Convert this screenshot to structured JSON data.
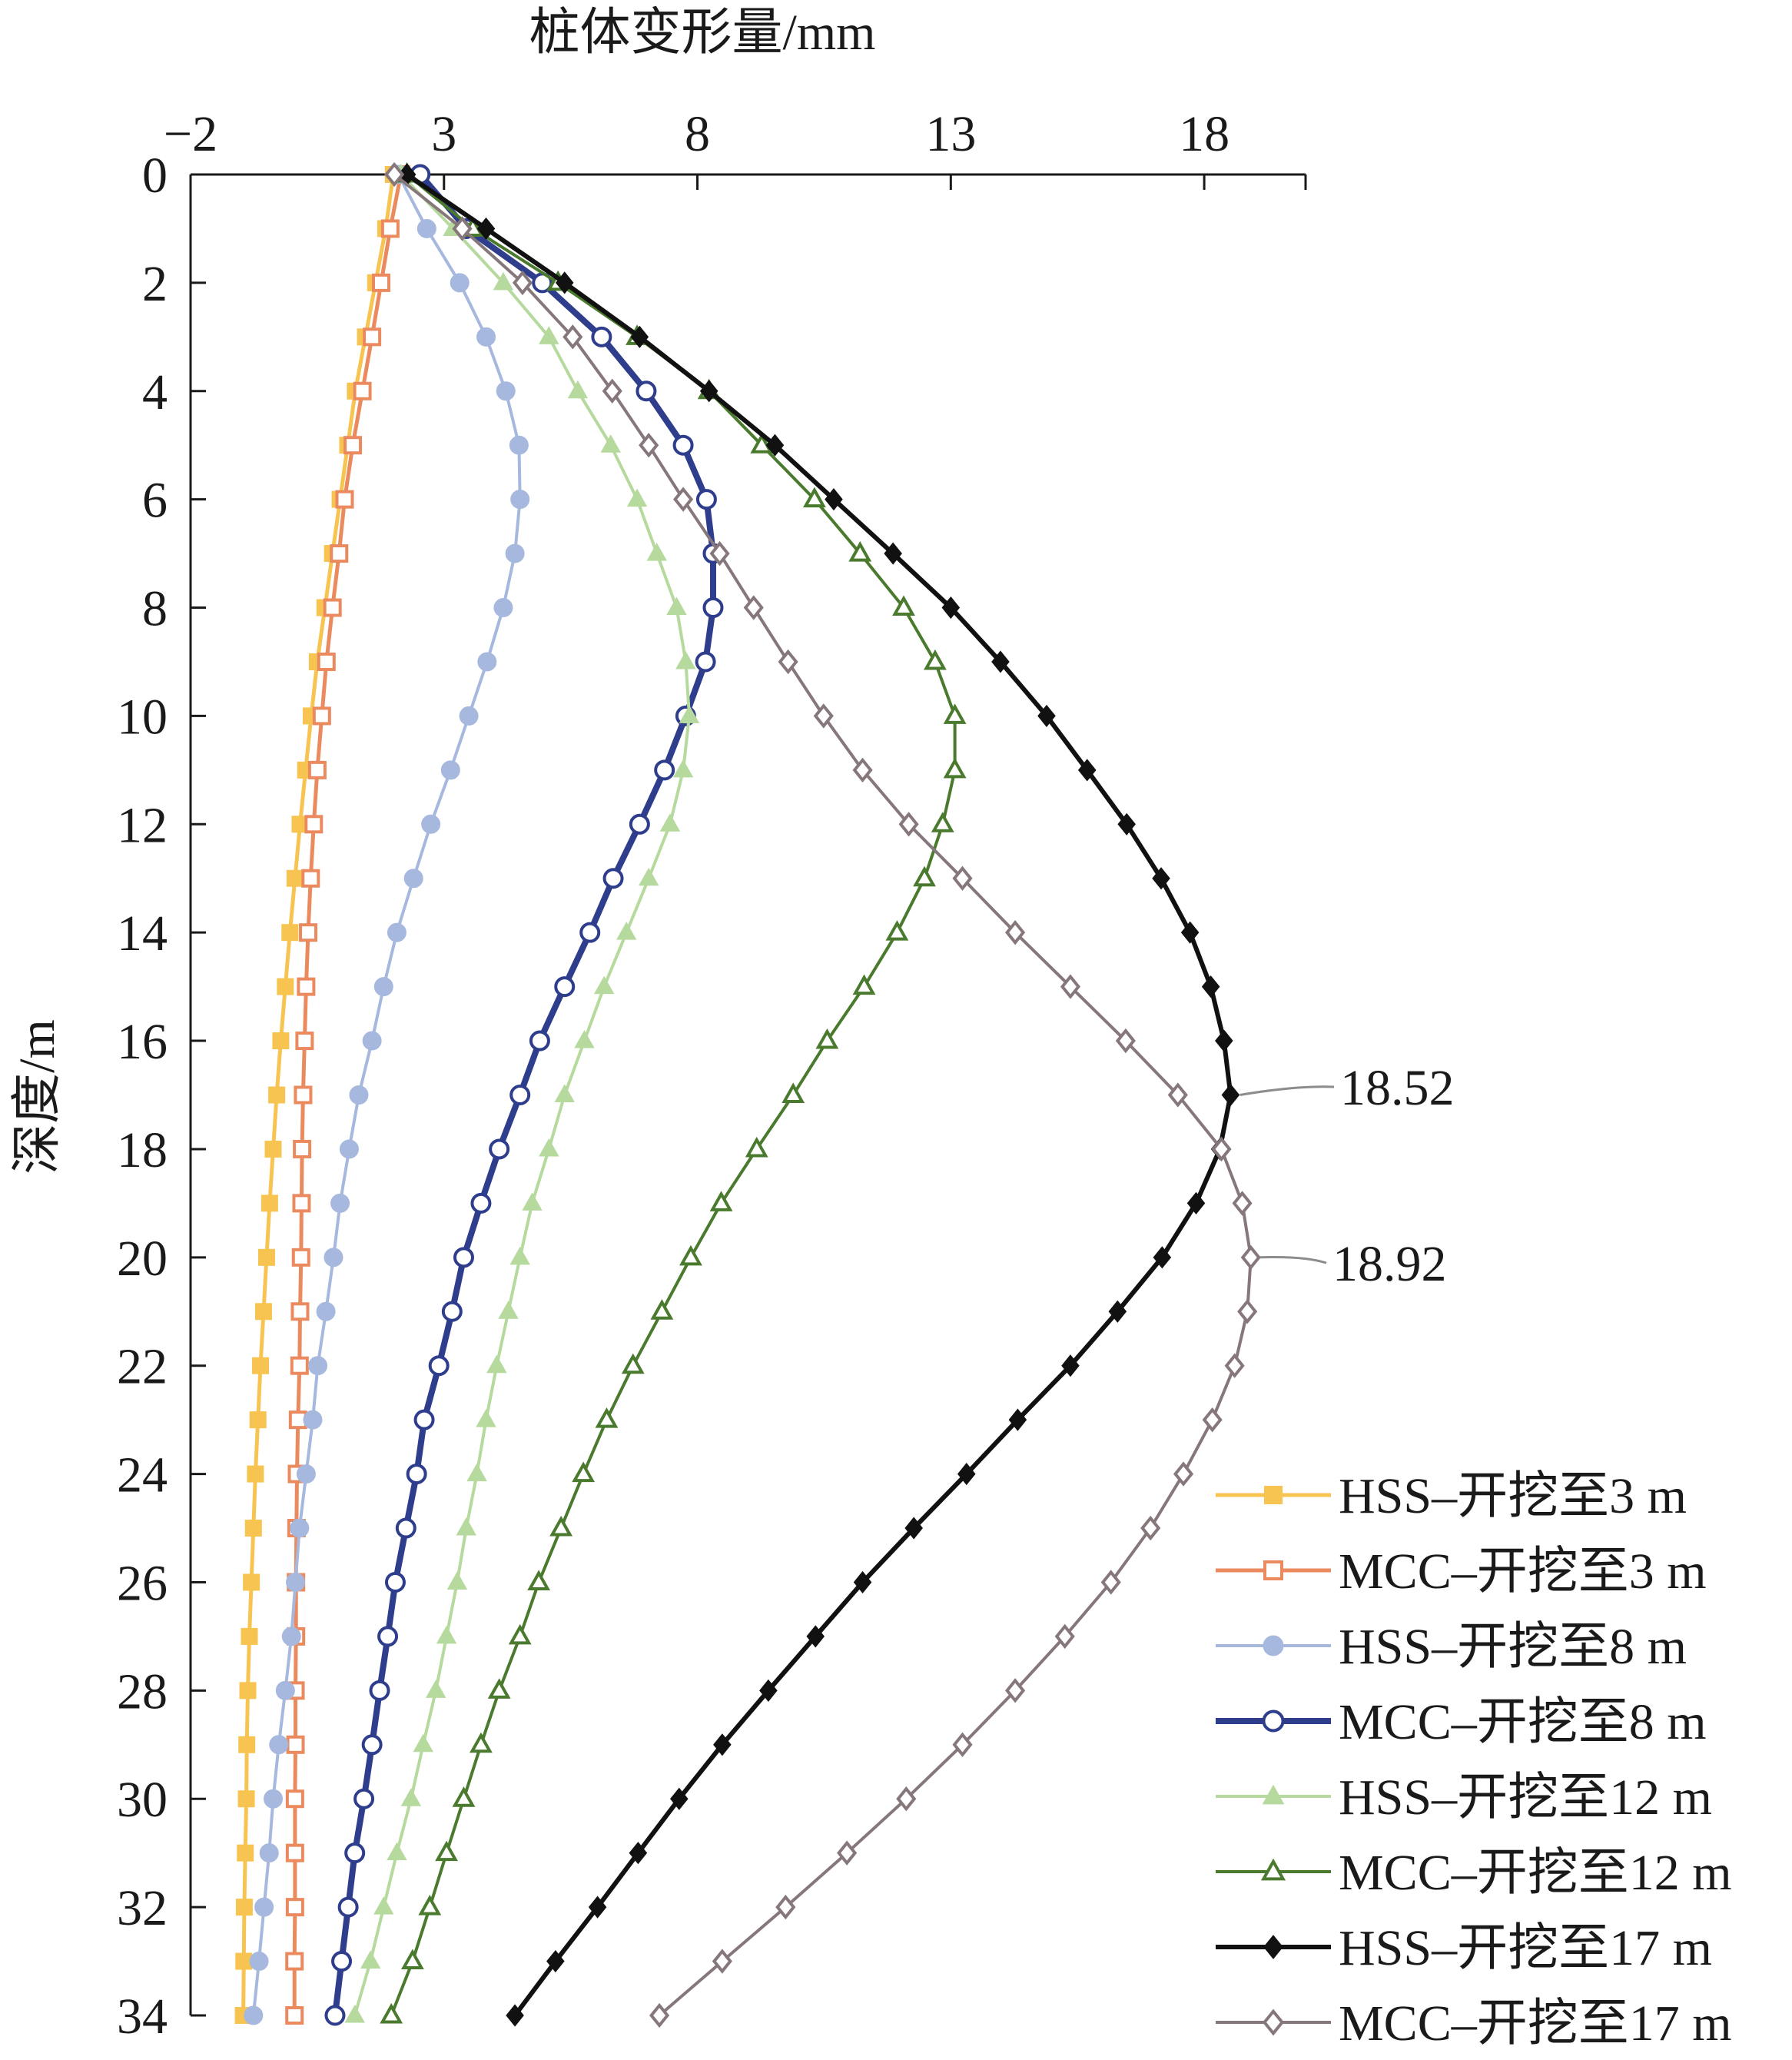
{
  "chart_data": {
    "type": "line",
    "xlabel": "桩体变形量/mm",
    "ylabel": "深度/m",
    "x_axis_position": "top",
    "y_inverted": true,
    "xlim": [
      -2,
      20
    ],
    "ylim": [
      0,
      34
    ],
    "x_ticks": [
      -2,
      3,
      8,
      13,
      18
    ],
    "x_tick_labels": [
      "−2",
      "3",
      "8",
      "13",
      "18"
    ],
    "y_ticks": [
      0,
      2,
      4,
      6,
      8,
      10,
      12,
      14,
      16,
      18,
      20,
      22,
      24,
      26,
      28,
      30,
      32,
      34
    ],
    "grid": false,
    "legend_position": "bottom-right",
    "depth": [
      0,
      1,
      2,
      3,
      4,
      5,
      6,
      7,
      8,
      9,
      10,
      11,
      12,
      13,
      14,
      15,
      16,
      17,
      18,
      19,
      20,
      21,
      22,
      23,
      24,
      25,
      26,
      27,
      28,
      29,
      30,
      31,
      32,
      33,
      34
    ],
    "series": [
      {
        "name": "HSS–开挖至3 m",
        "color": "#F8C451",
        "marker": "square",
        "filled": true,
        "values": [
          2.0,
          1.85,
          1.65,
          1.45,
          1.25,
          1.1,
          0.95,
          0.8,
          0.65,
          0.5,
          0.38,
          0.27,
          0.16,
          0.06,
          -0.04,
          -0.13,
          -0.22,
          -0.3,
          -0.37,
          -0.44,
          -0.5,
          -0.56,
          -0.62,
          -0.67,
          -0.72,
          -0.76,
          -0.8,
          -0.84,
          -0.87,
          -0.89,
          -0.9,
          -0.92,
          -0.94,
          -0.95,
          -0.96
        ]
      },
      {
        "name": "MCC–开挖至3 m",
        "color": "#EA8A5E",
        "marker": "square",
        "filled": false,
        "values": [
          2.15,
          1.94,
          1.76,
          1.58,
          1.39,
          1.2,
          1.04,
          0.93,
          0.8,
          0.68,
          0.59,
          0.5,
          0.43,
          0.37,
          0.32,
          0.28,
          0.25,
          0.22,
          0.2,
          0.19,
          0.18,
          0.16,
          0.15,
          0.12,
          0.1,
          0.09,
          0.08,
          0.08,
          0.07,
          0.07,
          0.06,
          0.06,
          0.06,
          0.05,
          0.05
        ]
      },
      {
        "name": "HSS–开挖至8 m",
        "color": "#A7B8DF",
        "marker": "circle",
        "filled": true,
        "values": [
          2.1,
          2.66,
          3.31,
          3.83,
          4.22,
          4.48,
          4.5,
          4.4,
          4.17,
          3.85,
          3.49,
          3.13,
          2.74,
          2.4,
          2.07,
          1.81,
          1.58,
          1.32,
          1.13,
          0.95,
          0.82,
          0.67,
          0.51,
          0.41,
          0.28,
          0.15,
          0.07,
          -0.01,
          -0.13,
          -0.26,
          -0.37,
          -0.45,
          -0.55,
          -0.65,
          -0.76
        ]
      },
      {
        "name": "MCC–开挖至8 m",
        "color": "#2E3D8C",
        "marker": "circle",
        "filled": false,
        "values": [
          2.53,
          3.44,
          4.94,
          6.11,
          6.99,
          7.72,
          8.18,
          8.31,
          8.31,
          8.16,
          7.77,
          7.35,
          6.86,
          6.34,
          5.88,
          5.38,
          4.89,
          4.5,
          4.09,
          3.73,
          3.39,
          3.16,
          2.9,
          2.61,
          2.46,
          2.25,
          2.04,
          1.89,
          1.73,
          1.58,
          1.42,
          1.24,
          1.11,
          0.98,
          0.85
        ]
      },
      {
        "name": "HSS–开挖至12 m",
        "color": "#B6DA9E",
        "marker": "triangle",
        "filled": true,
        "values": [
          2.15,
          3.18,
          4.17,
          5.07,
          5.64,
          6.29,
          6.81,
          7.2,
          7.59,
          7.77,
          7.84,
          7.72,
          7.46,
          7.04,
          6.6,
          6.16,
          5.77,
          5.38,
          5.07,
          4.74,
          4.5,
          4.27,
          4.04,
          3.83,
          3.65,
          3.44,
          3.26,
          3.05,
          2.84,
          2.59,
          2.35,
          2.07,
          1.81,
          1.55,
          1.24
        ]
      },
      {
        "name": "MCC–开挖至12 m",
        "color": "#4A7A2D",
        "marker": "triangle",
        "filled": false,
        "values": [
          2.27,
          3.57,
          5.25,
          6.81,
          8.23,
          9.27,
          10.31,
          11.21,
          12.07,
          12.69,
          13.08,
          13.08,
          12.84,
          12.48,
          11.94,
          11.29,
          10.56,
          9.89,
          9.17,
          8.47,
          7.87,
          7.3,
          6.73,
          6.21,
          5.75,
          5.31,
          4.87,
          4.5,
          4.09,
          3.73,
          3.39,
          3.05,
          2.72,
          2.38,
          1.96
        ]
      },
      {
        "name": "HSS–开挖至17 m",
        "color": "#111111",
        "marker": "diamond",
        "filled": true,
        "values": [
          2.27,
          3.83,
          5.38,
          6.86,
          8.23,
          9.53,
          10.69,
          11.86,
          13.0,
          13.98,
          14.89,
          15.69,
          16.47,
          17.15,
          17.72,
          18.13,
          18.39,
          18.52,
          18.31,
          17.84,
          17.17,
          16.29,
          15.36,
          14.32,
          13.31,
          12.27,
          11.26,
          10.33,
          9.4,
          8.49,
          7.64,
          6.83,
          6.03,
          5.2,
          4.4
        ]
      },
      {
        "name": "MCC–开挖至17 m",
        "color": "#86777B",
        "marker": "diamond",
        "filled": false,
        "values": [
          2.02,
          3.36,
          4.55,
          5.54,
          6.32,
          7.04,
          7.72,
          8.44,
          9.11,
          9.79,
          10.49,
          11.26,
          12.17,
          13.23,
          14.27,
          15.36,
          16.45,
          17.48,
          18.34,
          18.75,
          18.92,
          18.85,
          18.6,
          18.16,
          17.59,
          16.94,
          16.16,
          15.25,
          14.27,
          13.23,
          12.12,
          10.95,
          9.74,
          8.49,
          7.25
        ]
      }
    ],
    "annotations": [
      {
        "text": "18.52",
        "series_index": 6,
        "depth": 17
      },
      {
        "text": "18.92",
        "series_index": 7,
        "depth": 20
      }
    ]
  }
}
